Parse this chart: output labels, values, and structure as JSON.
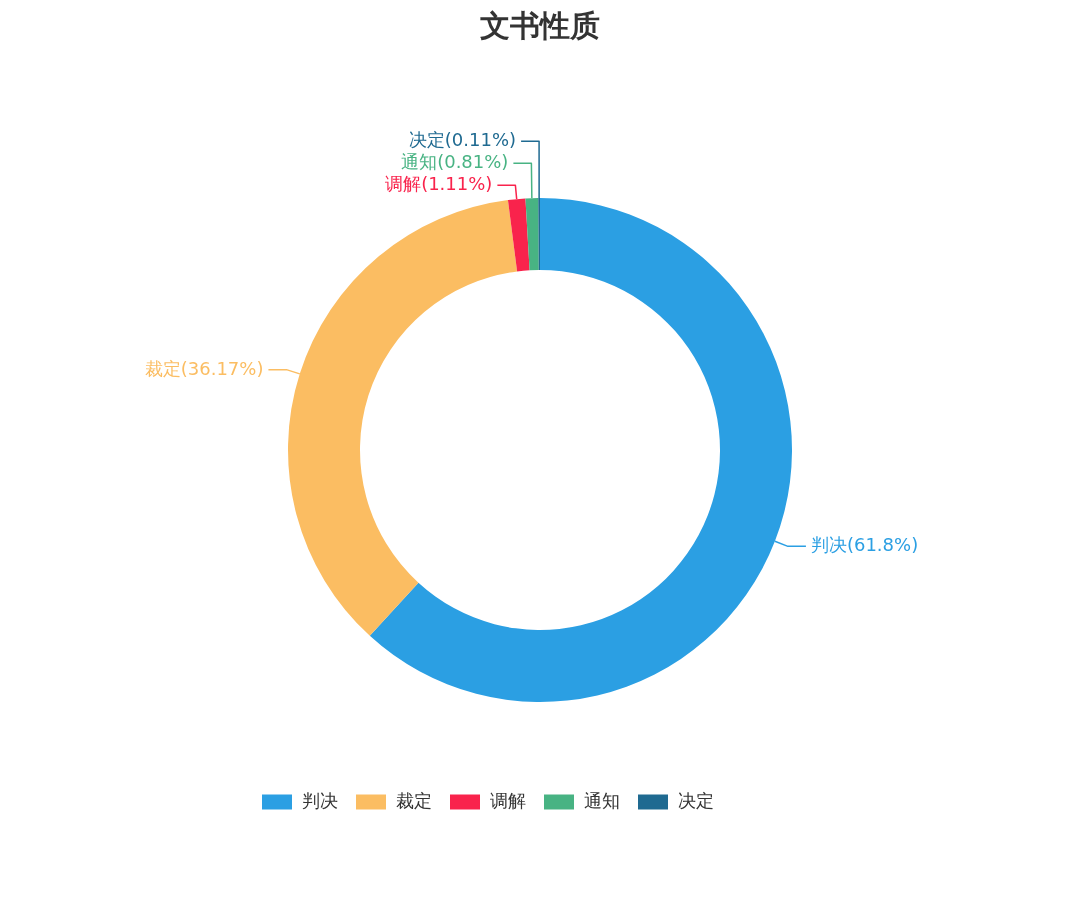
{
  "chart_data": {
    "type": "donut",
    "title": "文书性质",
    "categories": [
      "判决",
      "裁定",
      "调解",
      "通知",
      "决定"
    ],
    "values": [
      61.8,
      36.17,
      1.11,
      0.81,
      0.11
    ],
    "colors": [
      "#2b9fe3",
      "#fbbd62",
      "#f9234c",
      "#48b383",
      "#1f6a91"
    ],
    "value_labels": [
      "判决(61.8%)",
      "裁定(36.17%)",
      "调解(1.11%)",
      "通知(0.81%)",
      "决定(0.11%)"
    ],
    "legend": "bottom"
  }
}
